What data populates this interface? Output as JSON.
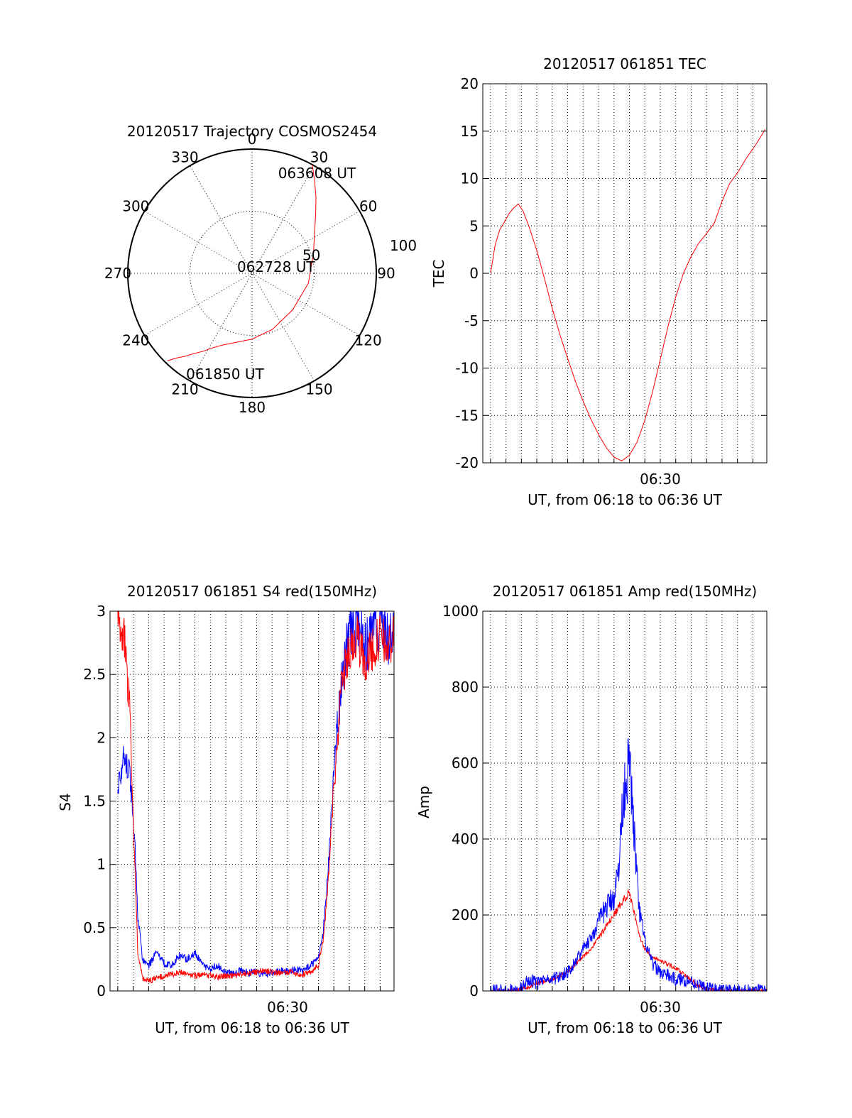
{
  "colors": {
    "red": "#ff0000",
    "blue": "#0000ff",
    "axis": "#000000",
    "grid": "#000000"
  },
  "chart_data": [
    {
      "id": "trajectory",
      "type": "polar",
      "title": "20120517 Trajectory COSMOS2454",
      "angle_labels": [
        "0",
        "30",
        "60",
        "90",
        "120",
        "150",
        "180",
        "210",
        "240",
        "270",
        "300",
        "330"
      ],
      "radius_labels": [
        {
          "value": 50,
          "label": "50"
        },
        {
          "value": 100,
          "label": "100"
        }
      ],
      "r_max": 100,
      "grid": true,
      "series": [
        {
          "color": "red",
          "points": [
            [
              29,
              100
            ],
            [
              34,
              90
            ],
            [
              40,
              80
            ],
            [
              47,
              70
            ],
            [
              57,
              60
            ],
            [
              72,
              52
            ],
            [
              100,
              46
            ],
            [
              132,
              44
            ],
            [
              160,
              48
            ],
            [
              180,
              53
            ],
            [
              195,
              58
            ],
            [
              203,
              63
            ],
            [
              208,
              68
            ],
            [
              212,
              74
            ],
            [
              216,
              80
            ],
            [
              219,
              86
            ],
            [
              222,
              92
            ],
            [
              224,
              98
            ]
          ]
        }
      ],
      "annotations": [
        {
          "text": "063608 UT",
          "angle": 33,
          "r": 96
        },
        {
          "text": "062728 UT",
          "angle": 75,
          "r": 20
        },
        {
          "text": "061850 UT",
          "angle": 195,
          "r": 84
        }
      ]
    },
    {
      "id": "tec",
      "type": "line",
      "title": "20120517 061851 TEC",
      "ylabel": "TEC",
      "xlabel": "UT, from 06:18 to 06:36 UT",
      "xlim": [
        18.5,
        36.9
      ],
      "ylim": [
        -20,
        20
      ],
      "yticks": [
        "-20",
        "-15",
        "-10",
        "-5",
        "0",
        "5",
        "10",
        "15",
        "20"
      ],
      "xticks": [
        {
          "value": 30,
          "label": "06:30"
        }
      ],
      "grid": true,
      "series": [
        {
          "color": "red",
          "x": [
            19.0,
            19.3,
            19.6,
            19.9,
            20.2,
            20.5,
            20.8,
            21.1,
            21.5,
            22,
            22.5,
            23,
            23.5,
            24,
            24.5,
            25,
            25.5,
            26,
            26.5,
            27,
            27.5,
            28,
            28.5,
            29,
            29.5,
            30,
            30.5,
            31,
            31.5,
            32,
            32.5,
            33,
            33.5,
            34,
            34.5,
            35,
            35.3,
            35.6,
            35.9,
            36.2,
            36.5,
            36.8
          ],
          "y": [
            0,
            3.0,
            4.6,
            5.4,
            6.3,
            6.9,
            7.3,
            6.6,
            4.9,
            2.4,
            -0.6,
            -3.7,
            -6.5,
            -9.0,
            -11.4,
            -13.5,
            -15.4,
            -17.0,
            -18.4,
            -19.4,
            -19.8,
            -19.2,
            -17.8,
            -15.5,
            -12.5,
            -9.1,
            -5.6,
            -2.5,
            0.0,
            1.8,
            3.2,
            4.2,
            5.3,
            7.6,
            9.5,
            10.6,
            11.4,
            12.2,
            12.9,
            13.6,
            14.4,
            15.2
          ]
        }
      ]
    },
    {
      "id": "s4",
      "type": "line",
      "title": "20120517 061851 S4 red(150MHz)",
      "ylabel": "S4",
      "xlabel": "UT, from 06:18 to 06:36 UT",
      "xlim": [
        18.5,
        36.9
      ],
      "ylim": [
        0,
        3
      ],
      "yticks": [
        "0",
        "0.5",
        "1",
        "1.5",
        "2",
        "2.5",
        "3"
      ],
      "xticks": [
        {
          "value": 30,
          "label": "06:30"
        }
      ],
      "grid": true,
      "series": [
        {
          "color": "blue",
          "x": [
            19.0,
            19.4,
            19.8,
            20.1,
            20.3,
            20.6,
            21,
            21.5,
            22,
            22.5,
            23,
            23.5,
            24,
            24.5,
            25,
            25.5,
            26,
            26.5,
            27,
            27.5,
            28,
            28.5,
            29,
            29.5,
            30,
            30.5,
            31,
            31.5,
            32,
            32.3,
            32.6,
            33,
            33.5,
            34,
            34.5,
            35,
            35.5,
            36,
            36.5,
            36.9
          ],
          "y": [
            1.6,
            1.9,
            1.7,
            1.2,
            0.6,
            0.25,
            0.2,
            0.3,
            0.22,
            0.2,
            0.28,
            0.25,
            0.3,
            0.2,
            0.18,
            0.2,
            0.15,
            0.14,
            0.16,
            0.14,
            0.15,
            0.13,
            0.14,
            0.16,
            0.15,
            0.17,
            0.16,
            0.2,
            0.25,
            0.45,
            0.9,
            1.7,
            2.5,
            2.8,
            2.9,
            2.7,
            2.8,
            2.9,
            2.8,
            2.9
          ],
          "noise": 0.1
        },
        {
          "color": "red",
          "x": [
            19.0,
            19.4,
            19.8,
            20.1,
            20.3,
            20.6,
            21,
            21.5,
            22,
            22.5,
            23,
            23.5,
            24,
            24.5,
            25,
            25.5,
            26,
            26.5,
            27,
            27.5,
            28,
            28.5,
            29,
            29.5,
            30,
            30.5,
            31,
            31.5,
            32,
            32.3,
            32.6,
            33,
            33.5,
            34,
            34.5,
            35,
            35.5,
            36,
            36.5,
            36.9
          ],
          "y": [
            2.9,
            2.8,
            2.2,
            1.0,
            0.3,
            0.1,
            0.08,
            0.1,
            0.12,
            0.13,
            0.15,
            0.14,
            0.12,
            0.13,
            0.12,
            0.11,
            0.12,
            0.12,
            0.13,
            0.14,
            0.15,
            0.16,
            0.15,
            0.14,
            0.15,
            0.14,
            0.13,
            0.15,
            0.2,
            0.4,
            0.8,
            1.6,
            2.4,
            2.7,
            2.8,
            2.6,
            2.7,
            2.8,
            2.7,
            2.8
          ],
          "noise": 0.08
        }
      ]
    },
    {
      "id": "amp",
      "type": "line",
      "title": "20120517 061851 Amp red(150MHz)",
      "ylabel": "Amp",
      "xlabel": "UT, from 06:18 to 06:36 UT",
      "xlim": [
        18.5,
        36.9
      ],
      "ylim": [
        0,
        1000
      ],
      "yticks": [
        "0",
        "200",
        "400",
        "600",
        "800",
        "1000"
      ],
      "xticks": [
        {
          "value": 30,
          "label": "06:30"
        }
      ],
      "grid": true,
      "series": [
        {
          "color": "red",
          "x": [
            19,
            20,
            21,
            21.5,
            22,
            22.5,
            23,
            23.5,
            24,
            24.5,
            25,
            25.5,
            26,
            26.5,
            27,
            27.3,
            27.6,
            28,
            28.3,
            28.6,
            29,
            29.5,
            30,
            30.5,
            31,
            31.5,
            32,
            32.5,
            33,
            34,
            35,
            36,
            36.9
          ],
          "y": [
            0,
            0,
            5,
            10,
            20,
            25,
            30,
            40,
            50,
            70,
            90,
            110,
            140,
            170,
            200,
            220,
            240,
            260,
            210,
            150,
            110,
            90,
            80,
            70,
            60,
            45,
            30,
            12,
            5,
            0,
            0,
            0,
            0
          ],
          "noise": 18
        },
        {
          "color": "blue",
          "x": [
            19,
            20,
            21,
            21.5,
            22,
            22.5,
            23,
            23.5,
            24,
            24.5,
            25,
            25.5,
            26,
            26.5,
            27,
            27.3,
            27.6,
            28,
            28.3,
            28.6,
            29,
            29.5,
            30,
            30.5,
            31,
            31.5,
            32,
            32.5,
            33,
            34,
            35,
            36,
            36.9
          ],
          "y": [
            0,
            0,
            10,
            30,
            20,
            25,
            30,
            40,
            50,
            80,
            110,
            140,
            180,
            220,
            250,
            320,
            520,
            600,
            420,
            220,
            130,
            70,
            50,
            40,
            30,
            30,
            25,
            15,
            5,
            0,
            0,
            0,
            0
          ],
          "noise": 60
        }
      ]
    }
  ]
}
